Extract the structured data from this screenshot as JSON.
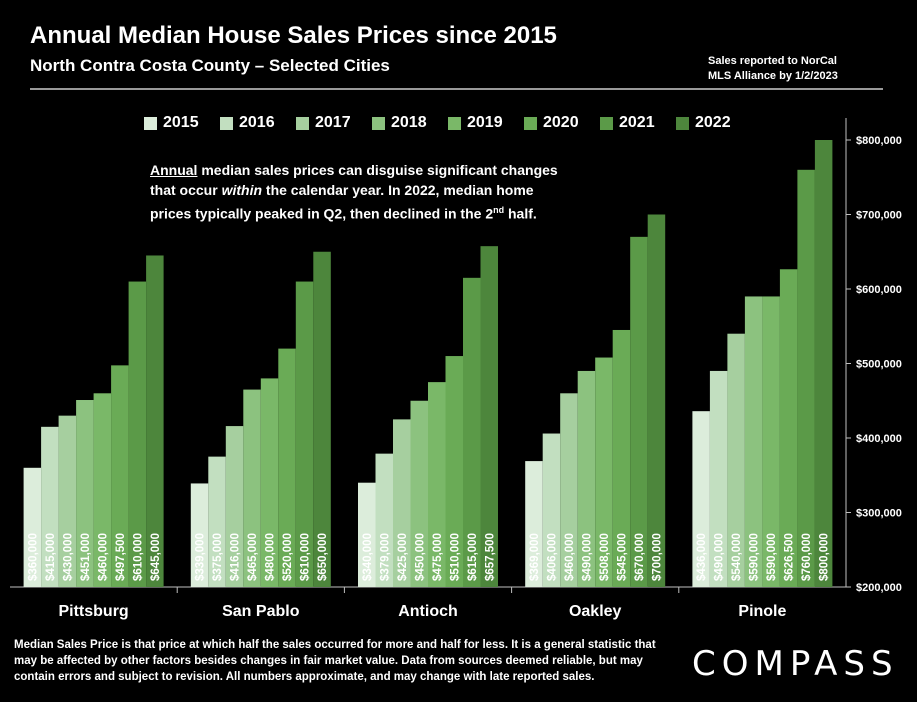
{
  "header": {
    "title": "Annual Median House Sales Prices since 2015",
    "subtitle": "North Contra Costa County – Selected Cities",
    "source_line1": "Sales reported to NorCal",
    "source_line2": "MLS Alliance by 1/2/2023"
  },
  "note": {
    "part1": "Annual",
    "part2": " median sales prices can disguise significant changes that occur ",
    "part3": "within",
    "part4": " the calendar year. In 2022, median home prices typically peaked in Q2, then declined in the 2",
    "part5": "nd",
    "part6": " half."
  },
  "footer": {
    "text": "Median Sales Price is that price at which half the sales occurred for more and half for less. It is a general statistic that may be affected by other factors besides changes in fair market value. Data from sources deemed reliable, but may contain errors and subject to revision.  All numbers approximate, and may change with late reported sales.",
    "logo": "COMPASS"
  },
  "chart_data": {
    "type": "bar",
    "categories": [
      "Pittsburg",
      "San Pablo",
      "Antioch",
      "Oakley",
      "Pinole"
    ],
    "series": [
      {
        "name": "2015",
        "color": "#dceddb",
        "values": [
          360000,
          339000,
          340000,
          369000,
          436000
        ],
        "labels": [
          "$360,000",
          "$339,000",
          "$340,000",
          "$369,000",
          "$436,000"
        ]
      },
      {
        "name": "2016",
        "color": "#c2dfc0",
        "values": [
          415000,
          375000,
          379000,
          406000,
          490000
        ],
        "labels": [
          "$415,000",
          "$375,000",
          "$379,000",
          "$406,000",
          "$490,000"
        ]
      },
      {
        "name": "2017",
        "color": "#a6cf9f",
        "values": [
          430000,
          416000,
          425000,
          460000,
          540000
        ],
        "labels": [
          "$430,000",
          "$416,000",
          "$425,000",
          "$460,000",
          "$540,000"
        ]
      },
      {
        "name": "2018",
        "color": "#8cc27f",
        "values": [
          451000,
          465000,
          450000,
          490000,
          590000
        ],
        "labels": [
          "$451,000",
          "$465,000",
          "$450,000",
          "$490,000",
          "$590,000"
        ]
      },
      {
        "name": "2019",
        "color": "#7ab868",
        "values": [
          460000,
          480000,
          475000,
          508000,
          590000
        ],
        "labels": [
          "$460,000",
          "$480,000",
          "$475,000",
          "$508,000",
          "$590,000"
        ]
      },
      {
        "name": "2020",
        "color": "#6aab56",
        "values": [
          497500,
          520000,
          510000,
          545000,
          626500
        ],
        "labels": [
          "$497,500",
          "$520,000",
          "$510,000",
          "$545,000",
          "$626,500"
        ]
      },
      {
        "name": "2021",
        "color": "#5b9a48",
        "values": [
          610000,
          610000,
          615000,
          670000,
          760000
        ],
        "labels": [
          "$610,000",
          "$610,000",
          "$615,000",
          "$670,000",
          "$760,000"
        ]
      },
      {
        "name": "2022",
        "color": "#4d863c",
        "values": [
          645000,
          650000,
          657500,
          700000,
          800000
        ],
        "labels": [
          "$645,000",
          "$650,000",
          "$657,500",
          "$700,000",
          "$800,000"
        ]
      }
    ],
    "ylim": [
      200000,
      800000
    ],
    "yticks": [
      200000,
      300000,
      400000,
      500000,
      600000,
      700000,
      800000
    ],
    "ytick_labels": [
      "$200,000",
      "$300,000",
      "$400,000",
      "$500,000",
      "$600,000",
      "$700,000",
      "$800,000"
    ],
    "y_axis_position": "right",
    "legend_position": "top",
    "grid": false
  }
}
